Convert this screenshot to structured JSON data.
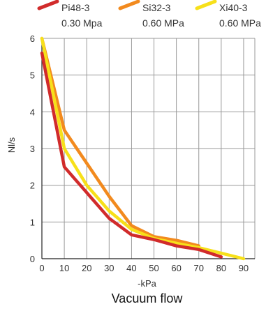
{
  "chart_data": {
    "type": "line",
    "title": "",
    "caption": "Vacuum flow",
    "xlabel": "-kPa",
    "ylabel": "Nl/s",
    "xlim": [
      0,
      95
    ],
    "ylim": [
      0,
      6
    ],
    "x_ticks": [
      0,
      10,
      20,
      30,
      40,
      50,
      60,
      70,
      80,
      90
    ],
    "y_ticks": [
      0,
      1,
      2,
      3,
      4,
      5,
      6
    ],
    "grid": true,
    "legend_position": "top",
    "series": [
      {
        "name": "Pi48-3",
        "subtitle": "0.30 Mpa",
        "color": "#d12b2b",
        "x": [
          0,
          10,
          20,
          30,
          40,
          50,
          60,
          70,
          80
        ],
        "y": [
          5.6,
          2.5,
          1.8,
          1.1,
          0.65,
          0.52,
          0.35,
          0.25,
          0.05
        ]
      },
      {
        "name": "Si32-3",
        "subtitle": "0.60 MPa",
        "color": "#f28a1e",
        "x": [
          0,
          10,
          20,
          30,
          40,
          50,
          60,
          70
        ],
        "y": [
          6.0,
          3.5,
          2.6,
          1.7,
          0.9,
          0.6,
          0.5,
          0.35
        ]
      },
      {
        "name": "Xi40-3",
        "subtitle": "0.60 MPa",
        "color": "#f7e01a",
        "x": [
          0,
          10,
          20,
          30,
          40,
          50,
          60,
          70,
          80,
          90
        ],
        "y": [
          6.0,
          3.0,
          2.0,
          1.3,
          0.8,
          0.55,
          0.42,
          0.3,
          0.15,
          0.0
        ]
      }
    ]
  }
}
